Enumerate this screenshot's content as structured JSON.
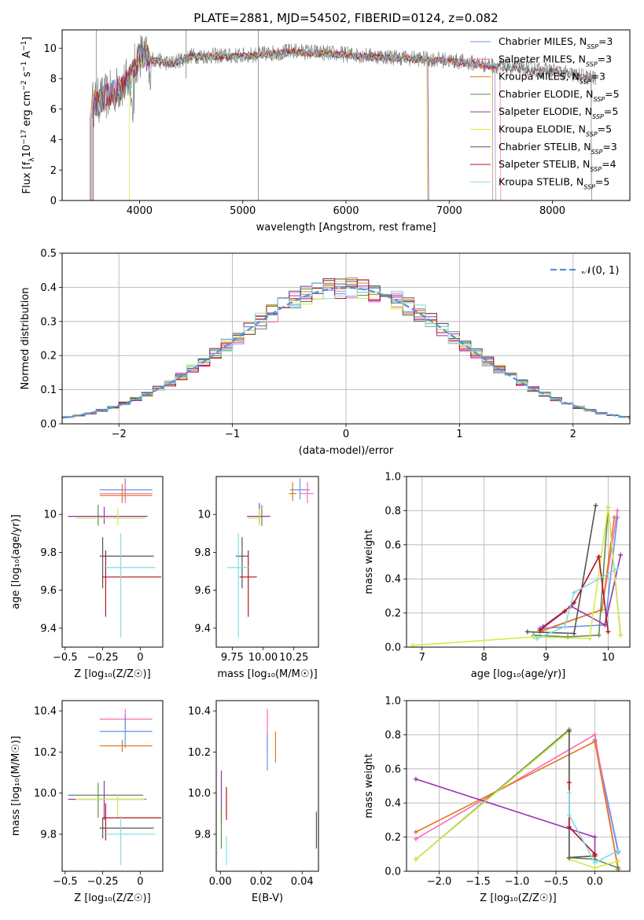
{
  "series_styles": [
    {
      "name": "Chabrier MILES",
      "nssp": "3",
      "color": "#6495ed"
    },
    {
      "name": "Salpeter MILES",
      "nssp": "3",
      "color": "#ff69b4"
    },
    {
      "name": "Kroupa MILES",
      "nssp": "3",
      "color": "#e07b1e"
    },
    {
      "name": "Chabrier ELODIE",
      "nssp": "5",
      "color": "#5d8a4e"
    },
    {
      "name": "Salpeter ELODIE",
      "nssp": "5",
      "color": "#9b30b4"
    },
    {
      "name": "Kroupa ELODIE",
      "nssp": "5",
      "color": "#d6e84a"
    },
    {
      "name": "Chabrier STELIB",
      "nssp": "3",
      "color": "#555555"
    },
    {
      "name": "Salpeter STELIB",
      "nssp": "4",
      "color": "#b0141e"
    },
    {
      "name": "Kroupa STELIB",
      "nssp": "5",
      "color": "#7fdde0"
    }
  ],
  "chart_data": [
    {
      "id": "spectrum",
      "type": "line",
      "title": "PLATE=2881, MJD=54502, FIBERID=0124, z=0.082",
      "xlabel": "wavelength [Angstrom, rest frame]",
      "ylabel_parts": [
        "Flux [f",
        "λ",
        "10",
        "−17",
        " erg cm",
        "−2",
        " s",
        "−1",
        " A",
        "−1",
        "]"
      ],
      "xlim": [
        3250,
        8750
      ],
      "ylim": [
        0,
        11.2
      ],
      "xticks": [
        4000,
        5000,
        6000,
        7000,
        8000
      ],
      "yticks": [
        0,
        2,
        4,
        6,
        8,
        10
      ],
      "continuum_x": [
        3500,
        3700,
        3900,
        4000,
        4100,
        4300,
        4500,
        5000,
        5500,
        6000,
        6500,
        7000,
        7500,
        8000,
        8500
      ],
      "continuum_y": [
        6.2,
        6.9,
        7.9,
        9.6,
        9.3,
        9.0,
        9.5,
        9.5,
        9.8,
        9.6,
        9.4,
        9.2,
        8.8,
        8.5,
        7.9
      ],
      "legend_suffix": "N",
      "legend_sub": "SSP",
      "legend_position": "right"
    },
    {
      "id": "residuals",
      "type": "histogram",
      "xlabel": "(data-model)/error",
      "ylabel": "Normed distribution",
      "xlim": [
        -2.5,
        2.5
      ],
      "ylim": [
        0,
        0.5
      ],
      "xticks": [
        -2,
        -1,
        0,
        1,
        2
      ],
      "yticks": [
        0,
        0.1,
        0.2,
        0.3,
        0.4,
        0.5
      ],
      "bin_width": 0.1,
      "reference_curve": "𝒩(0, 1)",
      "legend_position": "top-right"
    },
    {
      "id": "age-vs-Z",
      "type": "errorbar",
      "xlabel": "Z [log₁₀(Z/Z☉)]",
      "ylabel": "age  [log₁₀(age/yr)]",
      "xlim": [
        -0.52,
        0.15
      ],
      "ylim": [
        9.3,
        10.2
      ],
      "xticks": [
        -0.5,
        -0.25,
        0.0
      ],
      "yticks": [
        9.4,
        9.6,
        9.8,
        10.0
      ],
      "points": [
        {
          "c": 0,
          "x": -0.1,
          "y": 10.13,
          "xerr": [
            0.17,
            0.18
          ],
          "yerr": [
            0.05,
            0.06
          ]
        },
        {
          "c": 1,
          "x": -0.1,
          "y": 10.11,
          "xerr": [
            0.17,
            0.18
          ],
          "yerr": [
            0.05,
            0.06
          ]
        },
        {
          "c": 2,
          "x": -0.12,
          "y": 10.1,
          "xerr": [
            0.15,
            0.2
          ],
          "yerr": [
            0.04,
            0.06
          ]
        },
        {
          "c": 3,
          "x": -0.28,
          "y": 9.99,
          "xerr": [
            0.2,
            0.33
          ],
          "yerr": [
            0.05,
            0.06
          ]
        },
        {
          "c": 4,
          "x": -0.24,
          "y": 9.99,
          "xerr": [
            0.24,
            0.28
          ],
          "yerr": [
            0.04,
            0.05
          ]
        },
        {
          "c": 5,
          "x": -0.15,
          "y": 9.98,
          "xerr": [
            0.28,
            0.18
          ],
          "yerr": [
            0.04,
            0.05
          ]
        },
        {
          "c": 6,
          "x": -0.25,
          "y": 9.78,
          "xerr": [
            0.02,
            0.34
          ],
          "yerr": [
            0.17,
            0.1
          ]
        },
        {
          "c": 7,
          "x": -0.23,
          "y": 9.67,
          "xerr": [
            0.02,
            0.37
          ],
          "yerr": [
            0.21,
            0.14
          ]
        },
        {
          "c": 8,
          "x": -0.13,
          "y": 9.72,
          "xerr": [
            0.13,
            0.23
          ],
          "yerr": [
            0.37,
            0.18
          ]
        }
      ]
    },
    {
      "id": "age-vs-mass",
      "type": "errorbar",
      "xlabel": "mass [log₁₀(M/M☉)]",
      "ylabel": "",
      "xlim": [
        9.62,
        10.45
      ],
      "ylim": [
        9.3,
        10.2
      ],
      "xticks": [
        9.75,
        10.0,
        10.25
      ],
      "yticks": [
        9.4,
        9.6,
        9.8,
        10.0
      ],
      "xticklabels": [
        "9.75",
        "10.00",
        "10.25"
      ],
      "points": [
        {
          "c": 0,
          "x": 10.3,
          "y": 10.13,
          "xerr": [
            0.08,
            0.08
          ],
          "yerr": [
            0.05,
            0.06
          ]
        },
        {
          "c": 1,
          "x": 10.36,
          "y": 10.11,
          "xerr": [
            0.06,
            0.05
          ],
          "yerr": [
            0.05,
            0.06
          ]
        },
        {
          "c": 2,
          "x": 10.24,
          "y": 10.11,
          "xerr": [
            0.03,
            0.03
          ],
          "yerr": [
            0.04,
            0.06
          ]
        },
        {
          "c": 3,
          "x": 9.99,
          "y": 9.99,
          "xerr": [
            0.11,
            0.03
          ],
          "yerr": [
            0.05,
            0.06
          ]
        },
        {
          "c": 4,
          "x": 9.97,
          "y": 9.99,
          "xerr": [
            0.1,
            0.09
          ],
          "yerr": [
            0.04,
            0.07
          ]
        },
        {
          "c": 5,
          "x": 9.97,
          "y": 9.98,
          "xerr": [
            0.09,
            0.02
          ],
          "yerr": [
            0.04,
            0.05
          ]
        },
        {
          "c": 6,
          "x": 9.83,
          "y": 9.78,
          "xerr": [
            0.05,
            0.05
          ],
          "yerr": [
            0.17,
            0.1
          ]
        },
        {
          "c": 7,
          "x": 9.88,
          "y": 9.67,
          "xerr": [
            0.07,
            0.07
          ],
          "yerr": [
            0.21,
            0.14
          ]
        },
        {
          "c": 8,
          "x": 9.8,
          "y": 9.72,
          "xerr": [
            0.09,
            0.09
          ],
          "yerr": [
            0.37,
            0.18
          ]
        }
      ]
    },
    {
      "id": "mass-weight-vs-age",
      "type": "line",
      "xlabel": "age  [log₁₀(age/yr)]",
      "ylabel": "mass weight",
      "xlim": [
        6.75,
        10.35
      ],
      "ylim": [
        0,
        1.0
      ],
      "xticks": [
        7,
        8,
        9,
        10
      ],
      "yticks": [
        0.0,
        0.2,
        0.4,
        0.6,
        0.8,
        1.0
      ],
      "series": [
        {
          "c": 0,
          "x": [
            8.9,
            9.95,
            10.15
          ],
          "y": [
            0.11,
            0.13,
            0.76
          ]
        },
        {
          "c": 1,
          "x": [
            8.95,
            9.9,
            10.15
          ],
          "y": [
            0.1,
            0.22,
            0.8
          ]
        },
        {
          "c": 2,
          "x": [
            8.9,
            9.9,
            10.1
          ],
          "y": [
            0.09,
            0.22,
            0.76
          ]
        },
        {
          "c": 3,
          "x": [
            8.8,
            9.35,
            9.85,
            10.0,
            10.2
          ],
          "y": [
            0.07,
            0.06,
            0.07,
            0.82,
            0.07
          ]
        },
        {
          "c": 4,
          "x": [
            8.95,
            9.4,
            9.95,
            10.2
          ],
          "y": [
            0.12,
            0.24,
            0.13,
            0.54
          ]
        },
        {
          "c": 5,
          "x": [
            6.85,
            8.8,
            9.7,
            10.0,
            10.2
          ],
          "y": [
            0.01,
            0.06,
            0.05,
            0.82,
            0.07
          ]
        },
        {
          "c": 6,
          "x": [
            8.7,
            9.45,
            9.8
          ],
          "y": [
            0.09,
            0.08,
            0.83
          ]
        },
        {
          "c": 7,
          "x": [
            8.9,
            9.3,
            9.45,
            9.85,
            10.0
          ],
          "y": [
            0.1,
            0.21,
            0.26,
            0.53,
            0.09
          ]
        },
        {
          "c": 8,
          "x": [
            8.85,
            9.3,
            9.45,
            10.15
          ],
          "y": [
            0.05,
            0.12,
            0.32,
            0.46
          ]
        }
      ]
    },
    {
      "id": "mass-vs-Z",
      "type": "errorbar",
      "xlabel": "Z [log₁₀(Z/Z☉)]",
      "ylabel": "mass [log₁₀(M/M☉)]",
      "xlim": [
        -0.52,
        0.15
      ],
      "ylim": [
        9.62,
        10.45
      ],
      "xticks": [
        -0.5,
        -0.25,
        0.0
      ],
      "yticks": [
        9.8,
        10.0,
        10.2,
        10.4
      ],
      "points": [
        {
          "c": 1,
          "x": -0.1,
          "y": 10.36,
          "xerr": [
            0.17,
            0.18
          ],
          "yerr": [
            0.05,
            0.05
          ]
        },
        {
          "c": 0,
          "x": -0.1,
          "y": 10.3,
          "xerr": [
            0.17,
            0.18
          ],
          "yerr": [
            0.08,
            0.08
          ]
        },
        {
          "c": 2,
          "x": -0.12,
          "y": 10.23,
          "xerr": [
            0.15,
            0.2
          ],
          "yerr": [
            0.03,
            0.03
          ]
        },
        {
          "c": 3,
          "x": -0.28,
          "y": 9.99,
          "xerr": [
            0.2,
            0.3
          ],
          "yerr": [
            0.11,
            0.06
          ]
        },
        {
          "c": 4,
          "x": -0.24,
          "y": 9.97,
          "xerr": [
            0.24,
            0.28
          ],
          "yerr": [
            0.1,
            0.09
          ]
        },
        {
          "c": 5,
          "x": -0.15,
          "y": 9.97,
          "xerr": [
            0.28,
            0.18
          ],
          "yerr": [
            0.09,
            0.02
          ]
        },
        {
          "c": 7,
          "x": -0.23,
          "y": 9.88,
          "xerr": [
            0.02,
            0.37
          ],
          "yerr": [
            0.11,
            0.07
          ]
        },
        {
          "c": 6,
          "x": -0.25,
          "y": 9.83,
          "xerr": [
            0.02,
            0.34
          ],
          "yerr": [
            0.05,
            0.05
          ]
        },
        {
          "c": 8,
          "x": -0.13,
          "y": 9.8,
          "xerr": [
            0.13,
            0.23
          ],
          "yerr": [
            0.15,
            0.09
          ]
        }
      ]
    },
    {
      "id": "mass-vs-ebv",
      "type": "errorbar",
      "xlabel": "E(B-V)",
      "ylabel": "",
      "xlim": [
        -0.002,
        0.048
      ],
      "ylim": [
        9.62,
        10.45
      ],
      "xticks": [
        0.0,
        0.02,
        0.04
      ],
      "yticks": [
        9.8,
        10.0,
        10.2,
        10.4
      ],
      "xticklabels": [
        "0.00",
        "0.02",
        "0.04"
      ],
      "points": [
        {
          "c": 1,
          "x": 0.023,
          "y": 10.3,
          "xerr": [
            0,
            0
          ],
          "yerr": [
            0.1,
            0.11
          ]
        },
        {
          "c": 0,
          "x": 0.023,
          "y": 10.21,
          "xerr": [
            0,
            0
          ],
          "yerr": [
            0.1,
            0.08
          ]
        },
        {
          "c": 2,
          "x": 0.027,
          "y": 10.23,
          "xerr": [
            0,
            0
          ],
          "yerr": [
            0.08,
            0.07
          ]
        },
        {
          "c": 4,
          "x": 0.0005,
          "y": 10.0,
          "xerr": [
            0,
            0
          ],
          "yerr": [
            0.15,
            0.11
          ]
        },
        {
          "c": 3,
          "x": 0.0005,
          "y": 9.85,
          "xerr": [
            0,
            0
          ],
          "yerr": [
            0.12,
            0.1
          ]
        },
        {
          "c": 7,
          "x": 0.003,
          "y": 9.95,
          "xerr": [
            0,
            0
          ],
          "yerr": [
            0.08,
            0.08
          ]
        },
        {
          "c": 8,
          "x": 0.003,
          "y": 9.72,
          "xerr": [
            0,
            0
          ],
          "yerr": [
            0.07,
            0.07
          ]
        },
        {
          "c": 6,
          "x": 0.047,
          "y": 9.82,
          "xerr": [
            0,
            0
          ],
          "yerr": [
            0.09,
            0.09
          ]
        }
      ]
    },
    {
      "id": "mass-weight-vs-Z",
      "type": "line",
      "xlabel": "Z [log₁₀(Z/Z☉)]",
      "ylabel": "mass weight",
      "xlim": [
        -2.42,
        0.45
      ],
      "ylim": [
        0,
        1.0
      ],
      "xticks": [
        -2.0,
        -1.5,
        -1.0,
        -0.5,
        0.0
      ],
      "yticks": [
        0.0,
        0.2,
        0.4,
        0.6,
        0.8,
        1.0
      ],
      "series": [
        {
          "c": 0,
          "x": [
            0.3,
            0.0,
            0.3
          ],
          "y": [
            0.12,
            0.77,
            0.11
          ]
        },
        {
          "c": 1,
          "x": [
            -2.3,
            0.0,
            0.3
          ],
          "y": [
            0.19,
            0.8,
            0.01
          ]
        },
        {
          "c": 2,
          "x": [
            -2.3,
            0.0,
            0.3
          ],
          "y": [
            0.23,
            0.76,
            0.01
          ]
        },
        {
          "c": 3,
          "x": [
            -2.3,
            -0.33,
            -0.33,
            0.0,
            0.3
          ],
          "y": [
            0.07,
            0.83,
            0.08,
            0.07,
            0.02
          ]
        },
        {
          "c": 4,
          "x": [
            -2.3,
            0.0,
            0.0
          ],
          "y": [
            0.54,
            0.2,
            0.09
          ]
        },
        {
          "c": 5,
          "x": [
            -2.3,
            -0.33,
            -0.33,
            0.0,
            0.3
          ],
          "y": [
            0.07,
            0.82,
            0.07,
            0.02,
            0.06
          ]
        },
        {
          "c": 6,
          "x": [
            -0.33,
            -0.33,
            0.0,
            0.0
          ],
          "y": [
            0.82,
            0.08,
            0.09,
            0.1
          ]
        },
        {
          "c": 7,
          "x": [
            -0.33,
            -0.33,
            0.0,
            0.0
          ],
          "y": [
            0.52,
            0.26,
            0.1,
            0.09
          ]
        },
        {
          "c": 8,
          "x": [
            -0.33,
            -0.33,
            0.0,
            0.3
          ],
          "y": [
            0.46,
            0.33,
            0.05,
            0.12
          ]
        }
      ]
    }
  ]
}
